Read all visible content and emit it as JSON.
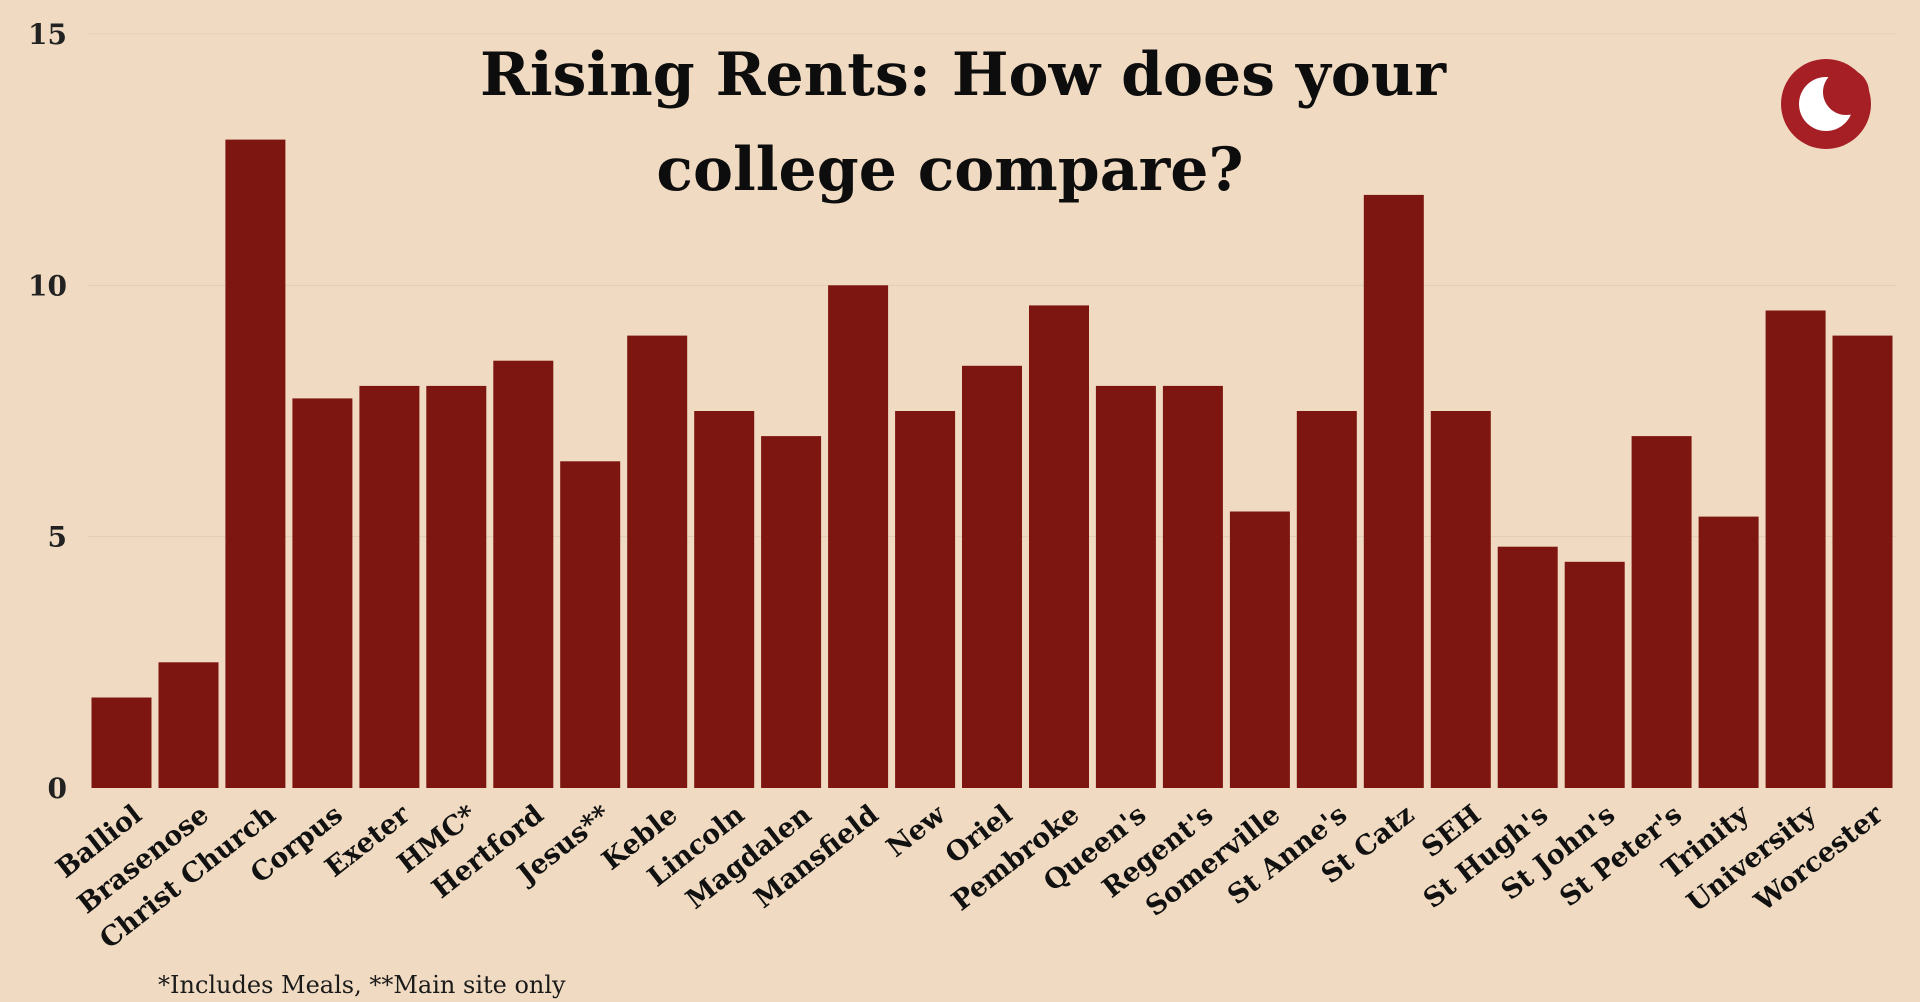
{
  "chart_data": {
    "type": "bar",
    "title_lines": [
      "Rising Rents: How does your",
      "college compare?"
    ],
    "footnote": "*Includes Meals, **Main site only",
    "categories": [
      "Balliol",
      "Brasenose",
      "Christ Church",
      "Corpus",
      "Exeter",
      "HMC*",
      "Hertford",
      "Jesus**",
      "Keble",
      "Lincoln",
      "Magdalen",
      "Mansfield",
      "New",
      "Oriel",
      "Pembroke",
      "Queen's",
      "Regent's",
      "Somerville",
      "St Anne's",
      "St Catz",
      "SEH",
      "St Hugh's",
      "St John's",
      "St Peter's",
      "Trinity",
      "University",
      "Worcester"
    ],
    "values": [
      1.8,
      2.5,
      12.9,
      7.75,
      8.0,
      8.0,
      8.5,
      6.5,
      9.0,
      7.5,
      7.0,
      10.0,
      7.5,
      8.4,
      9.6,
      8.0,
      8.0,
      5.5,
      7.5,
      11.8,
      7.5,
      4.8,
      4.5,
      7.0,
      5.4,
      9.5,
      9.0
    ],
    "ylim": [
      0,
      15
    ],
    "yticks": [
      0,
      5,
      10,
      15
    ],
    "grid": true,
    "bar_color": "#7d1610",
    "grid_color": "#e3cdb4",
    "logo": {
      "icon": "crescent-c-logo-icon",
      "color": "#a61f25"
    }
  }
}
